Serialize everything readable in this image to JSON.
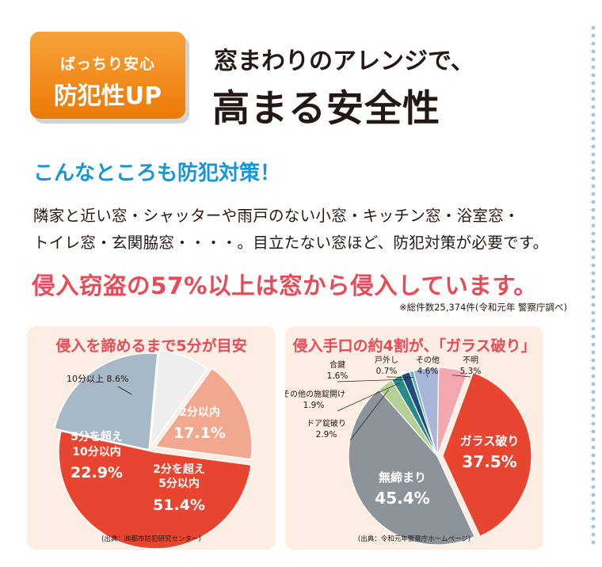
{
  "badge": {
    "line1": "ばっちり安心",
    "line2": "防犯性UP"
  },
  "heading": {
    "line1": "窓まわりのアレンジで、",
    "line2": "高まる安全性"
  },
  "subheading": "こんなところも防犯対策！",
  "body": {
    "line1": "隣家と近い窓・シャッターや雨戸のない小窓・キッチン窓・浴室窓・",
    "line2": "トイレ窓・玄関脇窓・・・・。目立たない窓ほど、防犯対策が必要です。"
  },
  "alert": "侵入窃盗の57%以上は窓から侵入しています。",
  "note": "※総件数25,374件(令和元年 警察庁調べ)",
  "chart_data": [
    {
      "type": "pie",
      "title": "侵入を諦めるまで5分が目安",
      "source": "(出典：㈱都市防犯研究センター)",
      "slices": [
        {
          "label": "2分以内",
          "value_label": "17.1%",
          "value": 17.1,
          "color": "#f2a88e"
        },
        {
          "label": "2分を超え5分以内",
          "lines": [
            "2分を超え",
            "5分以内"
          ],
          "value_label": "51.4%",
          "value": 51.4,
          "color": "#e84530"
        },
        {
          "label": "5分を超え10分以内",
          "lines": [
            "5分を超え",
            "10分以内"
          ],
          "value_label": "22.9%",
          "value": 22.9,
          "color": "#a7b8c6"
        },
        {
          "label": "10分以上",
          "value_label": "8.6%",
          "value": 8.6,
          "color": "#eeeeee"
        }
      ]
    },
    {
      "type": "pie",
      "title": "侵入手口の約4割が、「ガラス破り」",
      "source": "(出典：令和元年警察庁ホームページ)",
      "slices": [
        {
          "label": "ガラス破り",
          "value_label": "37.5%",
          "value": 37.5,
          "color": "#e84530"
        },
        {
          "label": "無締まり",
          "value_label": "45.4%",
          "value": 45.4,
          "color": "#8d9499"
        },
        {
          "label": "ドア錠破り",
          "value_label": "2.9%",
          "value": 2.9,
          "color": "#b5cf96"
        },
        {
          "label": "その他の施錠開け",
          "value_label": "1.9%",
          "value": 1.9,
          "color": "#2a8a86"
        },
        {
          "label": "合鍵",
          "value_label": "1.6%",
          "value": 1.6,
          "color": "#1d4d7a"
        },
        {
          "label": "戸外し",
          "value_label": "0.7%",
          "value": 0.7,
          "color": "#6aa7c9"
        },
        {
          "label": "その他",
          "value_label": "4.6%",
          "value": 4.6,
          "color": "#a8b7d8"
        },
        {
          "label": "不明",
          "value_label": "5.3%",
          "value": 5.3,
          "color": "#f3a8b0"
        }
      ]
    }
  ]
}
